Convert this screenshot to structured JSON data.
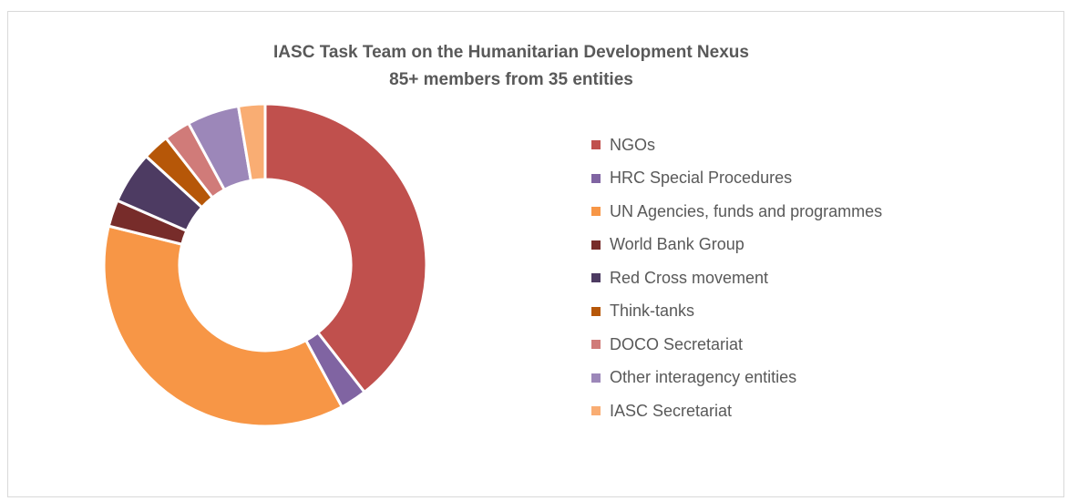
{
  "chart_data": {
    "type": "pie",
    "variant": "donut",
    "title": "IASC Task Team on the Humanitarian Development Nexus",
    "subtitle": "85+ members from 35 entities",
    "legend_position": "right",
    "categories": [
      "NGOs",
      "HRC Special Procedures",
      "UN Agencies, funds and programmes",
      "World Bank Group",
      "Red Cross movement",
      "Think-tanks",
      "DOCO Secretariat",
      "Other interagency entities",
      "IASC Secretariat"
    ],
    "values": [
      38.5,
      2.6,
      35.9,
      2.6,
      5.1,
      2.6,
      2.6,
      5.1,
      2.6
    ],
    "colors": [
      "#c0504d",
      "#8064a2",
      "#f79646",
      "#772c2a",
      "#4d3b62",
      "#b65708",
      "#d07b79",
      "#9c87b9",
      "#f9ad73"
    ]
  }
}
